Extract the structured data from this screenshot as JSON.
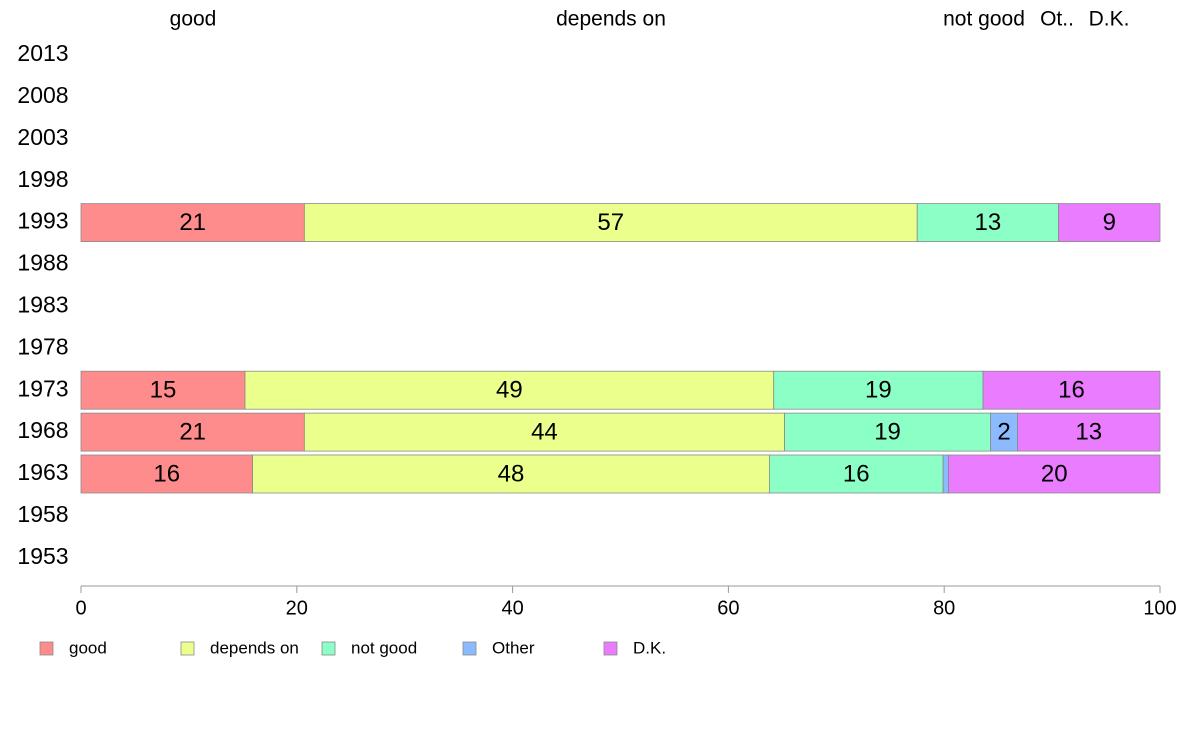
{
  "chart_data": {
    "type": "bar",
    "orientation": "horizontal",
    "stacked": true,
    "categories": [
      "2013",
      "2008",
      "2003",
      "1998",
      "1993",
      "1988",
      "1983",
      "1978",
      "1973",
      "1968",
      "1963",
      "1958",
      "1953"
    ],
    "series": [
      {
        "name": "good",
        "color": "#ff8c8c",
        "values": [
          null,
          null,
          null,
          null,
          20.7,
          null,
          null,
          null,
          15.2,
          20.7,
          15.9,
          null,
          null
        ]
      },
      {
        "name": "depends on",
        "color": "#ebff8c",
        "values": [
          null,
          null,
          null,
          null,
          56.8,
          null,
          null,
          null,
          49.0,
          44.5,
          47.9,
          null,
          null
        ]
      },
      {
        "name": "not good",
        "color": "#8cffc6",
        "values": [
          null,
          null,
          null,
          null,
          13.1,
          null,
          null,
          null,
          19.4,
          19.1,
          16.1,
          null,
          null
        ]
      },
      {
        "name": "Other",
        "color": "#8cbaff",
        "values": [
          null,
          null,
          null,
          null,
          0,
          null,
          null,
          null,
          0,
          2.5,
          0.5,
          null,
          null
        ]
      },
      {
        "name": "D.K.",
        "color": "#ea7cff",
        "values": [
          null,
          null,
          null,
          null,
          9.4,
          null,
          null,
          null,
          16.4,
          13.2,
          19.6,
          null,
          null
        ]
      }
    ],
    "data_labels": [
      [
        null,
        null,
        null,
        null,
        "21",
        null,
        null,
        null,
        "15",
        "21",
        "16",
        null,
        null
      ],
      [
        null,
        null,
        null,
        null,
        "57",
        null,
        null,
        null,
        "49",
        "44",
        "48",
        null,
        null
      ],
      [
        null,
        null,
        null,
        null,
        "13",
        null,
        null,
        null,
        "19",
        "19",
        "16",
        null,
        null
      ],
      [
        null,
        null,
        null,
        null,
        "",
        null,
        null,
        null,
        "",
        "2",
        "",
        null,
        null
      ],
      [
        null,
        null,
        null,
        null,
        "9",
        null,
        null,
        null,
        "16",
        "13",
        "20",
        null,
        null
      ]
    ],
    "top_labels": [
      "good",
      "depends on",
      "not good",
      "Ot..",
      "D.K."
    ],
    "xlim": [
      0,
      100
    ],
    "xticks": [
      "0",
      "20",
      "40",
      "60",
      "80",
      "100"
    ],
    "grid": false,
    "legend": {
      "position": "bottom",
      "entries": [
        "good",
        "depends on",
        "not good",
        "Other",
        "D.K."
      ]
    }
  }
}
